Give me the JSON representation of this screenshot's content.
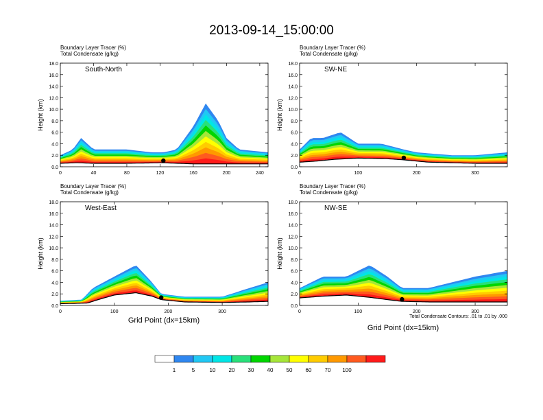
{
  "title": "2013-09-14_15:00:00",
  "panel_header": {
    "line1_name": "Boundary Layer Tracer",
    "line1_unit": "(%)",
    "line2_name": "Total Condensate",
    "line2_unit": "(g/kg)"
  },
  "ylabel": "Height (km)",
  "xlabel": "Grid Point (dx=15km)",
  "contour_note": "Total Condensate Contours: .01 to .01 by .000",
  "colorbar": {
    "levels": [
      "1",
      "5",
      "10",
      "20",
      "30",
      "40",
      "50",
      "60",
      "70",
      "100"
    ],
    "colors": [
      "#ffffff",
      "#2f87f0",
      "#21c8f4",
      "#00e6e6",
      "#29e07a",
      "#00d600",
      "#a6e639",
      "#ffff00",
      "#ffcc00",
      "#ff9900",
      "#ff5a1f",
      "#ff1a1a"
    ]
  },
  "chart_data": [
    {
      "type": "heatmap",
      "panel": "South-North",
      "title": "South-North",
      "xlim": [
        0,
        250
      ],
      "ylim": [
        0,
        18
      ],
      "x_ticks": [
        "0",
        "40",
        "80",
        "120",
        "160",
        "200",
        "240"
      ],
      "y_ticks": [
        "0.0",
        "2.0",
        "4.0",
        "6.0",
        "8.0",
        "10.0",
        "12.0",
        "14.0",
        "16.0",
        "18.0"
      ],
      "marker_x": 124,
      "terrain_km": [
        [
          0,
          0.6
        ],
        [
          20,
          0.7
        ],
        [
          40,
          0.6
        ],
        [
          80,
          0.6
        ],
        [
          124,
          0.7
        ],
        [
          160,
          0.5
        ],
        [
          200,
          0.5
        ],
        [
          250,
          0.5
        ]
      ],
      "tracer_top_km": [
        [
          0,
          2
        ],
        [
          15,
          3
        ],
        [
          25,
          5
        ],
        [
          40,
          3
        ],
        [
          60,
          3
        ],
        [
          80,
          3
        ],
        [
          110,
          2.5
        ],
        [
          124,
          2.5
        ],
        [
          140,
          3
        ],
        [
          160,
          7
        ],
        [
          175,
          11
        ],
        [
          190,
          8
        ],
        [
          200,
          5
        ],
        [
          215,
          3
        ],
        [
          250,
          2.5
        ]
      ]
    },
    {
      "type": "heatmap",
      "panel": "SW-NE",
      "title": "SW-NE",
      "xlim": [
        0,
        355
      ],
      "ylim": [
        0,
        18
      ],
      "x_ticks": [
        "0",
        "100",
        "200",
        "300"
      ],
      "y_ticks": [
        "0.0",
        "2.0",
        "4.0",
        "6.0",
        "8.0",
        "10.0",
        "12.0",
        "14.0",
        "16.0",
        "18.0"
      ],
      "marker_x": 178,
      "terrain_km": [
        [
          0,
          0.8
        ],
        [
          30,
          1.0
        ],
        [
          60,
          1.3
        ],
        [
          100,
          1.5
        ],
        [
          150,
          1.4
        ],
        [
          178,
          1.2
        ],
        [
          220,
          0.8
        ],
        [
          260,
          0.7
        ],
        [
          300,
          0.6
        ],
        [
          355,
          0.6
        ]
      ],
      "tracer_top_km": [
        [
          0,
          3
        ],
        [
          20,
          5
        ],
        [
          40,
          5
        ],
        [
          70,
          6
        ],
        [
          100,
          4
        ],
        [
          140,
          4
        ],
        [
          178,
          3
        ],
        [
          200,
          2.5
        ],
        [
          260,
          2
        ],
        [
          300,
          2
        ],
        [
          355,
          2.5
        ]
      ]
    },
    {
      "type": "heatmap",
      "panel": "West-East",
      "title": "West-East",
      "xlim": [
        0,
        385
      ],
      "ylim": [
        0,
        18
      ],
      "x_ticks": [
        "0",
        "100",
        "200",
        "300"
      ],
      "y_ticks": [
        "0.0",
        "2.0",
        "4.0",
        "6.0",
        "8.0",
        "10.0",
        "12.0",
        "14.0",
        "16.0",
        "18.0"
      ],
      "marker_x": 187,
      "terrain_km": [
        [
          0,
          0.3
        ],
        [
          50,
          0.4
        ],
        [
          70,
          1.0
        ],
        [
          100,
          1.8
        ],
        [
          140,
          2.2
        ],
        [
          170,
          1.6
        ],
        [
          187,
          1.0
        ],
        [
          230,
          0.6
        ],
        [
          300,
          0.5
        ],
        [
          350,
          0.6
        ],
        [
          385,
          0.7
        ]
      ],
      "tracer_top_km": [
        [
          0,
          0.8
        ],
        [
          40,
          1.0
        ],
        [
          60,
          3
        ],
        [
          100,
          5
        ],
        [
          140,
          7
        ],
        [
          170,
          4
        ],
        [
          187,
          2
        ],
        [
          230,
          1.5
        ],
        [
          300,
          1.5
        ],
        [
          350,
          3
        ],
        [
          385,
          4
        ]
      ]
    },
    {
      "type": "heatmap",
      "panel": "NW-SE",
      "title": "NW-SE",
      "xlim": [
        0,
        355
      ],
      "ylim": [
        0,
        18
      ],
      "x_ticks": [
        "0",
        "100",
        "200",
        "300"
      ],
      "y_ticks": [
        "0.0",
        "2.0",
        "4.0",
        "6.0",
        "8.0",
        "10.0",
        "12.0",
        "14.0",
        "16.0",
        "18.0"
      ],
      "marker_x": 175,
      "terrain_km": [
        [
          0,
          1.3
        ],
        [
          40,
          1.6
        ],
        [
          80,
          1.8
        ],
        [
          120,
          1.4
        ],
        [
          150,
          1.0
        ],
        [
          175,
          0.7
        ],
        [
          220,
          0.6
        ],
        [
          300,
          0.6
        ],
        [
          355,
          0.6
        ]
      ],
      "tracer_top_km": [
        [
          0,
          3
        ],
        [
          40,
          5
        ],
        [
          80,
          5
        ],
        [
          120,
          7
        ],
        [
          150,
          5
        ],
        [
          175,
          3
        ],
        [
          220,
          3
        ],
        [
          260,
          4
        ],
        [
          300,
          5
        ],
        [
          355,
          6
        ]
      ]
    }
  ]
}
